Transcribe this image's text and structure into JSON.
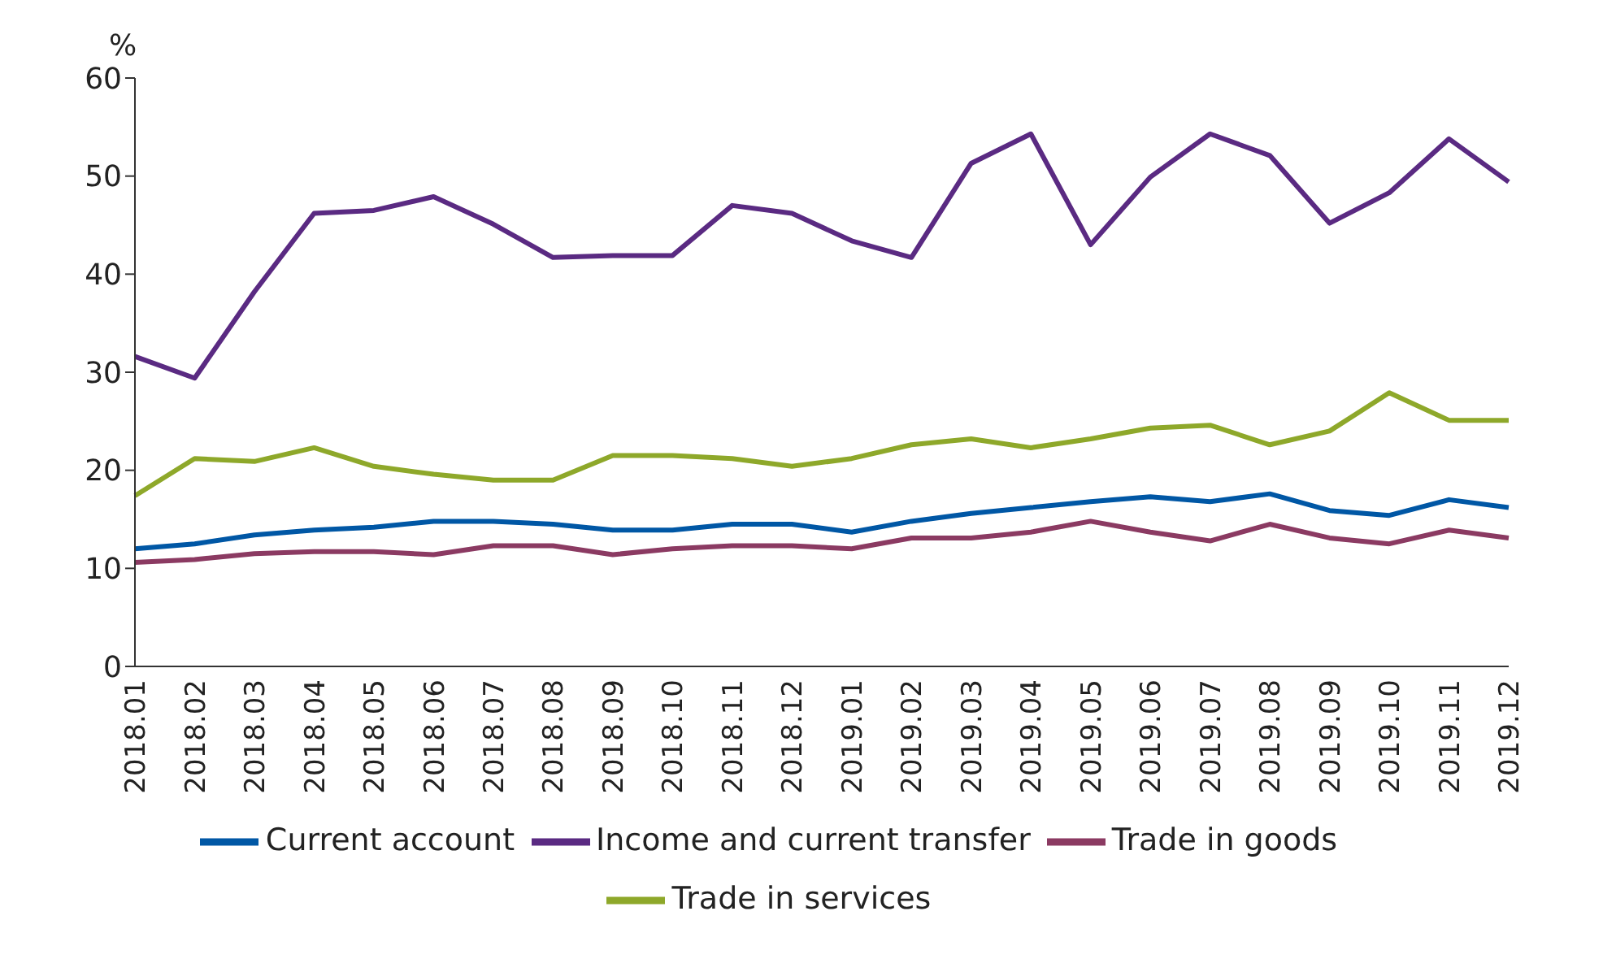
{
  "chart_data": {
    "type": "line",
    "ylabel": "%",
    "categories": [
      "2018.01",
      "2018.02",
      "2018.03",
      "2018.04",
      "2018.05",
      "2018.06",
      "2018.07",
      "2018.08",
      "2018.09",
      "2018.10",
      "2018.11",
      "2018.12",
      "2019.01",
      "2019.02",
      "2019.03",
      "2019.04",
      "2019.05",
      "2019.06",
      "2019.07",
      "2019.08",
      "2019.09",
      "2019.10",
      "2019.11",
      "2019.12"
    ],
    "series": [
      {
        "name": "Current account",
        "color": "#0057a5",
        "values": [
          12.0,
          12.5,
          13.4,
          13.9,
          14.2,
          14.8,
          14.8,
          14.5,
          13.9,
          13.9,
          14.5,
          14.5,
          13.7,
          14.8,
          15.6,
          16.2,
          16.8,
          17.3,
          16.8,
          17.6,
          15.9,
          15.4,
          17.0,
          16.2
        ]
      },
      {
        "name": "Trade in goods",
        "color": "#8b3a62",
        "values": [
          10.6,
          10.9,
          11.5,
          11.7,
          11.7,
          11.4,
          12.3,
          12.3,
          11.4,
          12.0,
          12.3,
          12.3,
          12.0,
          13.1,
          13.1,
          13.7,
          14.8,
          13.7,
          12.8,
          14.5,
          13.1,
          12.5,
          13.9,
          13.1
        ]
      },
      {
        "name": "Trade in services",
        "color": "#8ea82a",
        "values": [
          17.4,
          21.2,
          20.9,
          22.3,
          20.4,
          19.6,
          19.0,
          19.0,
          21.5,
          21.5,
          21.2,
          20.4,
          21.2,
          22.6,
          23.2,
          22.3,
          23.2,
          24.3,
          24.6,
          22.6,
          24.0,
          27.9,
          25.1,
          25.1
        ]
      },
      {
        "name": "Income and current transfer",
        "color": "#5a2a82",
        "values": [
          31.6,
          29.4,
          38.2,
          46.2,
          46.5,
          47.9,
          45.1,
          41.7,
          41.9,
          41.9,
          47.0,
          46.2,
          43.4,
          41.7,
          51.3,
          54.3,
          43.0,
          49.9,
          54.3,
          52.1,
          45.2,
          48.3,
          53.8,
          49.4
        ]
      }
    ],
    "ylim": [
      0,
      60
    ],
    "yticks": [
      0,
      10,
      20,
      30,
      40,
      50,
      60
    ],
    "grid": false,
    "legend": "bottom",
    "marker": "none",
    "line_style": "solid"
  }
}
